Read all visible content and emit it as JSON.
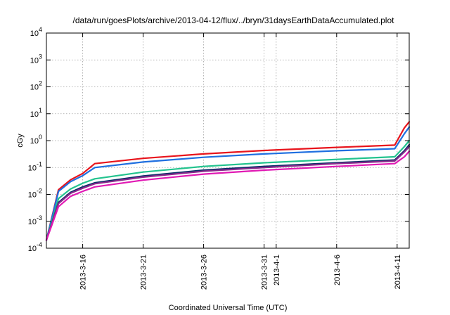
{
  "chart_data": {
    "type": "line",
    "title": "/data/run/goesPlots/archive/2013-04-12/flux/../bryn/31daysEarthDataAccumulated.plot",
    "xlabel": "Coordinated Universal Time (UTC)",
    "ylabel": "cGy",
    "y_scale": "log",
    "ylim": [
      0.0001,
      10000
    ],
    "xlim": [
      "2013-03-13",
      "2013-04-12"
    ],
    "grid": true,
    "x_ticks": [
      "2013-3-16",
      "2013-3-21",
      "2013-3-26",
      "2013-3-31",
      "2013-4-1",
      "2013-4-6",
      "2013-4-11"
    ],
    "y_ticks": [
      {
        "value": 0.0001,
        "mantissa": "10",
        "exp": "-4"
      },
      {
        "value": 0.001,
        "mantissa": "10",
        "exp": "-3"
      },
      {
        "value": 0.01,
        "mantissa": "10",
        "exp": "-2"
      },
      {
        "value": 0.1,
        "mantissa": "10",
        "exp": "-1"
      },
      {
        "value": 1,
        "mantissa": "10",
        "exp": "0"
      },
      {
        "value": 10,
        "mantissa": "10",
        "exp": "1"
      },
      {
        "value": 100,
        "mantissa": "10",
        "exp": "2"
      },
      {
        "value": 1000,
        "mantissa": "10",
        "exp": "3"
      },
      {
        "value": 10000,
        "mantissa": "10",
        "exp": "4"
      }
    ],
    "series": [
      {
        "color": "#e8141c",
        "x": [
          "2013-03-13",
          "2013-03-14",
          "2013-03-15",
          "2013-03-16",
          "2013-03-17",
          "2013-03-21",
          "2013-03-26",
          "2013-03-31",
          "2013-04-06",
          "2013-04-10.8",
          "2013-04-11.6",
          "2013-04-12"
        ],
        "y": [
          0.0002,
          0.015,
          0.035,
          0.06,
          0.14,
          0.22,
          0.32,
          0.43,
          0.56,
          0.68,
          3.0,
          5.0
        ]
      },
      {
        "color": "#1f6fe0",
        "x": [
          "2013-03-13",
          "2013-03-14",
          "2013-03-15",
          "2013-03-16",
          "2013-03-17",
          "2013-03-21",
          "2013-03-26",
          "2013-03-31",
          "2013-04-06",
          "2013-04-10.8",
          "2013-04-11.6",
          "2013-04-12"
        ],
        "y": [
          0.0002,
          0.013,
          0.03,
          0.05,
          0.1,
          0.16,
          0.24,
          0.32,
          0.42,
          0.5,
          1.8,
          3.2
        ]
      },
      {
        "color": "#22c38e",
        "x": [
          "2013-03-13",
          "2013-03-14",
          "2013-03-15",
          "2013-03-16",
          "2013-03-17",
          "2013-03-21",
          "2013-03-26",
          "2013-03-31",
          "2013-04-06",
          "2013-04-10.8",
          "2013-04-11.6",
          "2013-04-12"
        ],
        "y": [
          0.0002,
          0.007,
          0.016,
          0.026,
          0.038,
          0.068,
          0.11,
          0.15,
          0.2,
          0.25,
          0.6,
          1.0
        ]
      },
      {
        "color": "#0a2f68",
        "x": [
          "2013-03-13",
          "2013-03-14",
          "2013-03-15",
          "2013-03-16",
          "2013-03-17",
          "2013-03-21",
          "2013-03-26",
          "2013-03-31",
          "2013-04-06",
          "2013-04-10.8",
          "2013-04-11.6",
          "2013-04-12"
        ],
        "y": [
          0.0002,
          0.005,
          0.012,
          0.019,
          0.027,
          0.048,
          0.08,
          0.11,
          0.15,
          0.19,
          0.42,
          0.7
        ]
      },
      {
        "color": "#8a2a8c",
        "x": [
          "2013-03-13",
          "2013-03-14",
          "2013-03-15",
          "2013-03-16",
          "2013-03-17",
          "2013-03-21",
          "2013-03-26",
          "2013-03-31",
          "2013-04-06",
          "2013-04-10.8",
          "2013-04-11.6",
          "2013-04-12"
        ],
        "y": [
          0.0002,
          0.0046,
          0.011,
          0.017,
          0.025,
          0.044,
          0.073,
          0.1,
          0.14,
          0.175,
          0.38,
          0.6
        ]
      },
      {
        "color": "#e11ab4",
        "x": [
          "2013-03-13",
          "2013-03-14",
          "2013-03-15",
          "2013-03-16",
          "2013-03-17",
          "2013-03-21",
          "2013-03-26",
          "2013-03-31",
          "2013-04-06",
          "2013-04-10.8",
          "2013-04-11.6",
          "2013-04-12"
        ],
        "y": [
          0.0002,
          0.0035,
          0.0085,
          0.013,
          0.019,
          0.034,
          0.057,
          0.08,
          0.11,
          0.14,
          0.25,
          0.4
        ]
      }
    ]
  }
}
